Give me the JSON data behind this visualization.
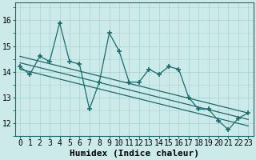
{
  "x": [
    0,
    1,
    2,
    3,
    4,
    5,
    6,
    7,
    8,
    9,
    10,
    11,
    12,
    13,
    14,
    15,
    16,
    17,
    18,
    19,
    20,
    21,
    22,
    23
  ],
  "y": [
    14.2,
    13.9,
    14.6,
    14.4,
    15.9,
    14.4,
    14.3,
    12.55,
    13.6,
    15.5,
    14.8,
    13.6,
    13.6,
    14.1,
    13.9,
    14.2,
    14.1,
    13.0,
    12.55,
    12.55,
    12.1,
    11.75,
    12.2,
    12.4
  ],
  "bg_color": "#cceaea",
  "line_color": "#1a6b6b",
  "grid_color": "#aed4d4",
  "xlabel": "Humidex (Indice chaleur)",
  "ylabel_ticks": [
    12,
    13,
    14,
    15,
    16
  ],
  "xlim": [
    -0.5,
    23.5
  ],
  "ylim": [
    11.5,
    16.7
  ],
  "xlabel_fontsize": 8,
  "tick_fontsize": 7,
  "marker": "+",
  "markersize": 4,
  "markeredgewidth": 1.2,
  "linewidth": 0.9,
  "regression_lines": [
    {
      "x_start": 0,
      "y_start": 14.6,
      "x_end": 23,
      "y_end": 12.4
    },
    {
      "x_start": 0,
      "y_start": 14.35,
      "x_end": 23,
      "y_end": 12.15
    },
    {
      "x_start": 0,
      "y_start": 14.1,
      "x_end": 23,
      "y_end": 11.9
    }
  ]
}
